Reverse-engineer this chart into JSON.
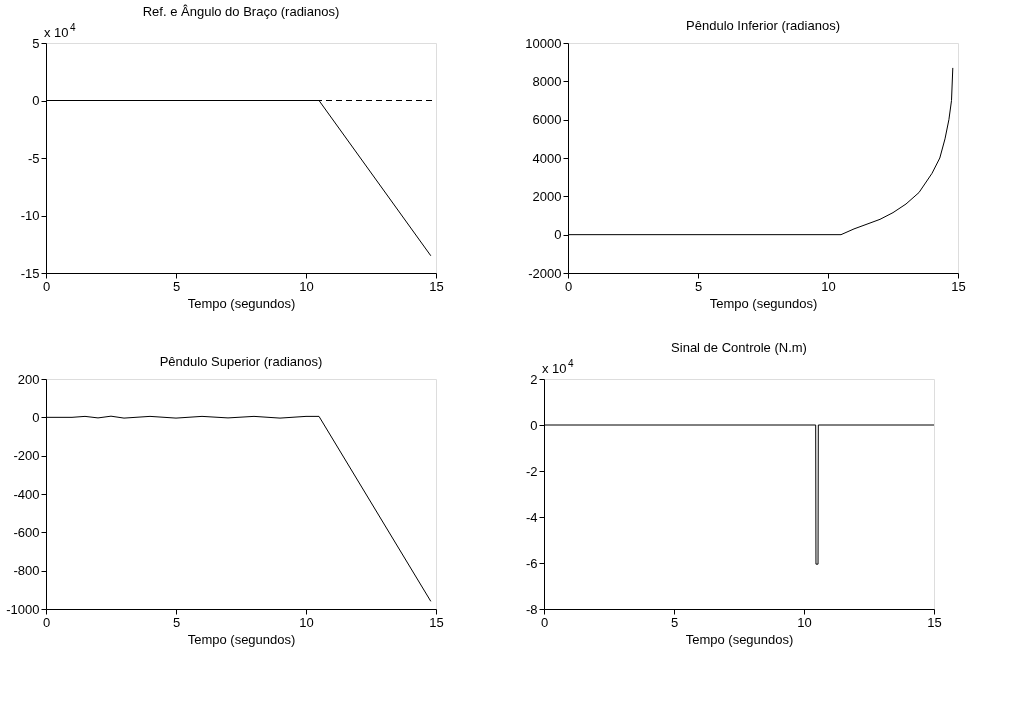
{
  "chart_data": [
    {
      "type": "line",
      "title": "Ref. e Ângulo do Braço (radianos)",
      "xlabel": "Tempo (segundos)",
      "xlim": [
        0,
        15
      ],
      "xticks": [
        0,
        5,
        10,
        15
      ],
      "ylim": [
        -15,
        5
      ],
      "yticks": [
        -15,
        -10,
        -5,
        0,
        5
      ],
      "annotations": [
        "x 10$^{4}$"
      ],
      "series": [
        {
          "color": "#000000",
          "line_style": "dashed",
          "x": [
            0,
            15
          ],
          "values": [
            0,
            0
          ]
        },
        {
          "color": "#000000",
          "line_style": "solid",
          "x": [
            0,
            10.5,
            14.8
          ],
          "values": [
            0,
            0,
            -13.5
          ]
        }
      ]
    },
    {
      "type": "line",
      "title": "Pêndulo Inferior (radianos)",
      "xlabel": "Tempo (segundos)",
      "xlim": [
        0,
        15
      ],
      "xticks": [
        0,
        5,
        10,
        15
      ],
      "ylim": [
        -2000,
        10000
      ],
      "yticks": [
        -2000,
        0,
        2000,
        4000,
        6000,
        8000,
        10000
      ],
      "series": [
        {
          "color": "#000000",
          "line_style": "solid",
          "x": [
            0,
            10.5,
            11,
            11.5,
            12,
            12.5,
            13,
            13.5,
            14,
            14.3,
            14.5,
            14.65,
            14.75,
            14.8
          ],
          "values": [
            0,
            0,
            300,
            550,
            800,
            1150,
            1600,
            2200,
            3200,
            4000,
            5000,
            6000,
            7000,
            8700
          ]
        }
      ]
    },
    {
      "type": "line",
      "title": "Pêndulo Superior (radianos)",
      "xlabel": "Tempo (segundos)",
      "xlim": [
        0,
        15
      ],
      "xticks": [
        0,
        5,
        10,
        15
      ],
      "ylim": [
        -1000,
        200
      ],
      "yticks": [
        -1000,
        -800,
        -600,
        -400,
        -200,
        0,
        200
      ],
      "series": [
        {
          "color": "#000000",
          "line_style": "solid",
          "x": [
            0,
            1,
            1.5,
            2,
            2.5,
            3,
            4,
            5,
            6,
            7,
            8,
            9,
            10,
            10.5,
            14.8
          ],
          "values": [
            0,
            0,
            5,
            -3,
            6,
            -4,
            5,
            -4,
            5,
            -3,
            5,
            -4,
            5,
            5,
            -960
          ]
        }
      ]
    },
    {
      "type": "line",
      "title": "Sinal de Controle (N.m)",
      "xlabel": "Tempo (segundos)",
      "xlim": [
        0,
        15
      ],
      "xticks": [
        0,
        5,
        10,
        15
      ],
      "ylim": [
        -8,
        2
      ],
      "yticks": [
        -8,
        -6,
        -4,
        -2,
        0,
        2
      ],
      "annotations": [
        "x 10$^{4}$"
      ],
      "series": [
        {
          "color": "#000000",
          "line_style": "solid",
          "x": [
            0,
            10.45,
            10.46,
            10.54,
            10.55,
            15
          ],
          "values": [
            0,
            0,
            -6.05,
            -6.05,
            0,
            0
          ]
        }
      ]
    }
  ]
}
